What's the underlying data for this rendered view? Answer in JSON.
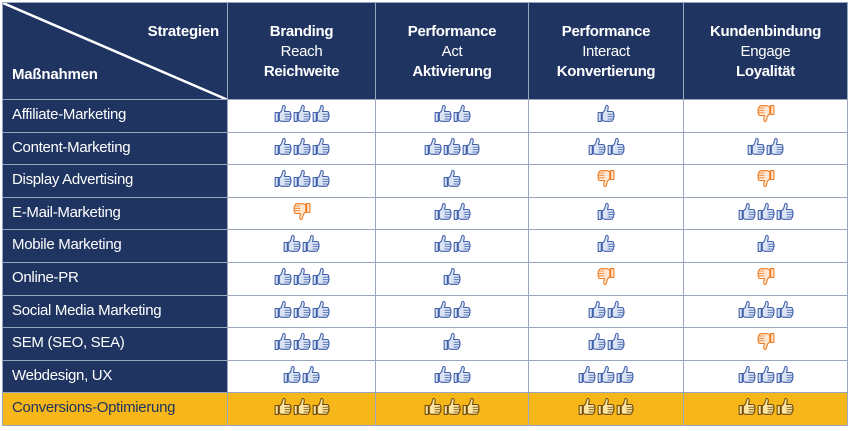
{
  "header": {
    "top_label": "Strategien",
    "bottom_label": "Maßnahmen",
    "columns": [
      {
        "line1": "Branding",
        "line2": "Reach",
        "line3": "Reichweite"
      },
      {
        "line1": "Performance",
        "line2": "Act",
        "line3": "Aktivierung"
      },
      {
        "line1": "Performance",
        "line2": "Interact",
        "line3": "Konvertierung"
      },
      {
        "line1": "Kundenbindung",
        "line2": "Engage",
        "line3": "Loyalität"
      }
    ]
  },
  "colors": {
    "header_bg": "#1f3461",
    "highlight_bg": "#f7b718",
    "thumb_up": "#3f5fa8",
    "thumb_down": "#ef7b22",
    "thumb_highlight": "#6e4a0a"
  },
  "rows": [
    {
      "label": "Affiliate-Marketing",
      "highlight": false,
      "cells": [
        {
          "icon": "thumbs-up",
          "count": 3
        },
        {
          "icon": "thumbs-up",
          "count": 2
        },
        {
          "icon": "thumbs-up",
          "count": 1
        },
        {
          "icon": "thumbs-down",
          "count": 1
        }
      ]
    },
    {
      "label": "Content-Marketing",
      "highlight": false,
      "cells": [
        {
          "icon": "thumbs-up",
          "count": 3
        },
        {
          "icon": "thumbs-up",
          "count": 3
        },
        {
          "icon": "thumbs-up",
          "count": 2
        },
        {
          "icon": "thumbs-up",
          "count": 2
        }
      ]
    },
    {
      "label": "Display Advertising",
      "highlight": false,
      "cells": [
        {
          "icon": "thumbs-up",
          "count": 3
        },
        {
          "icon": "thumbs-up",
          "count": 1
        },
        {
          "icon": "thumbs-down",
          "count": 1
        },
        {
          "icon": "thumbs-down",
          "count": 1
        }
      ]
    },
    {
      "label": "E-Mail-Marketing",
      "highlight": false,
      "cells": [
        {
          "icon": "thumbs-down",
          "count": 1
        },
        {
          "icon": "thumbs-up",
          "count": 2
        },
        {
          "icon": "thumbs-up",
          "count": 1
        },
        {
          "icon": "thumbs-up",
          "count": 3
        }
      ]
    },
    {
      "label": "Mobile Marketing",
      "highlight": false,
      "cells": [
        {
          "icon": "thumbs-up",
          "count": 2
        },
        {
          "icon": "thumbs-up",
          "count": 2
        },
        {
          "icon": "thumbs-up",
          "count": 1
        },
        {
          "icon": "thumbs-up",
          "count": 1
        }
      ]
    },
    {
      "label": "Online-PR",
      "highlight": false,
      "cells": [
        {
          "icon": "thumbs-up",
          "count": 3
        },
        {
          "icon": "thumbs-up",
          "count": 1
        },
        {
          "icon": "thumbs-down",
          "count": 1
        },
        {
          "icon": "thumbs-down",
          "count": 1
        }
      ]
    },
    {
      "label": "Social Media Marketing",
      "highlight": false,
      "cells": [
        {
          "icon": "thumbs-up",
          "count": 3
        },
        {
          "icon": "thumbs-up",
          "count": 2
        },
        {
          "icon": "thumbs-up",
          "count": 2
        },
        {
          "icon": "thumbs-up",
          "count": 3
        }
      ]
    },
    {
      "label": "SEM (SEO, SEA)",
      "highlight": false,
      "cells": [
        {
          "icon": "thumbs-up",
          "count": 3
        },
        {
          "icon": "thumbs-up",
          "count": 1
        },
        {
          "icon": "thumbs-up",
          "count": 2
        },
        {
          "icon": "thumbs-down",
          "count": 1
        }
      ]
    },
    {
      "label": "Webdesign, UX",
      "highlight": false,
      "cells": [
        {
          "icon": "thumbs-up",
          "count": 2
        },
        {
          "icon": "thumbs-up",
          "count": 2
        },
        {
          "icon": "thumbs-up",
          "count": 3
        },
        {
          "icon": "thumbs-up",
          "count": 3
        }
      ]
    },
    {
      "label": "Conversions-Optimierung",
      "highlight": true,
      "cells": [
        {
          "icon": "thumbs-up",
          "count": 3
        },
        {
          "icon": "thumbs-up",
          "count": 3
        },
        {
          "icon": "thumbs-up",
          "count": 3
        },
        {
          "icon": "thumbs-up",
          "count": 3
        }
      ]
    }
  ]
}
